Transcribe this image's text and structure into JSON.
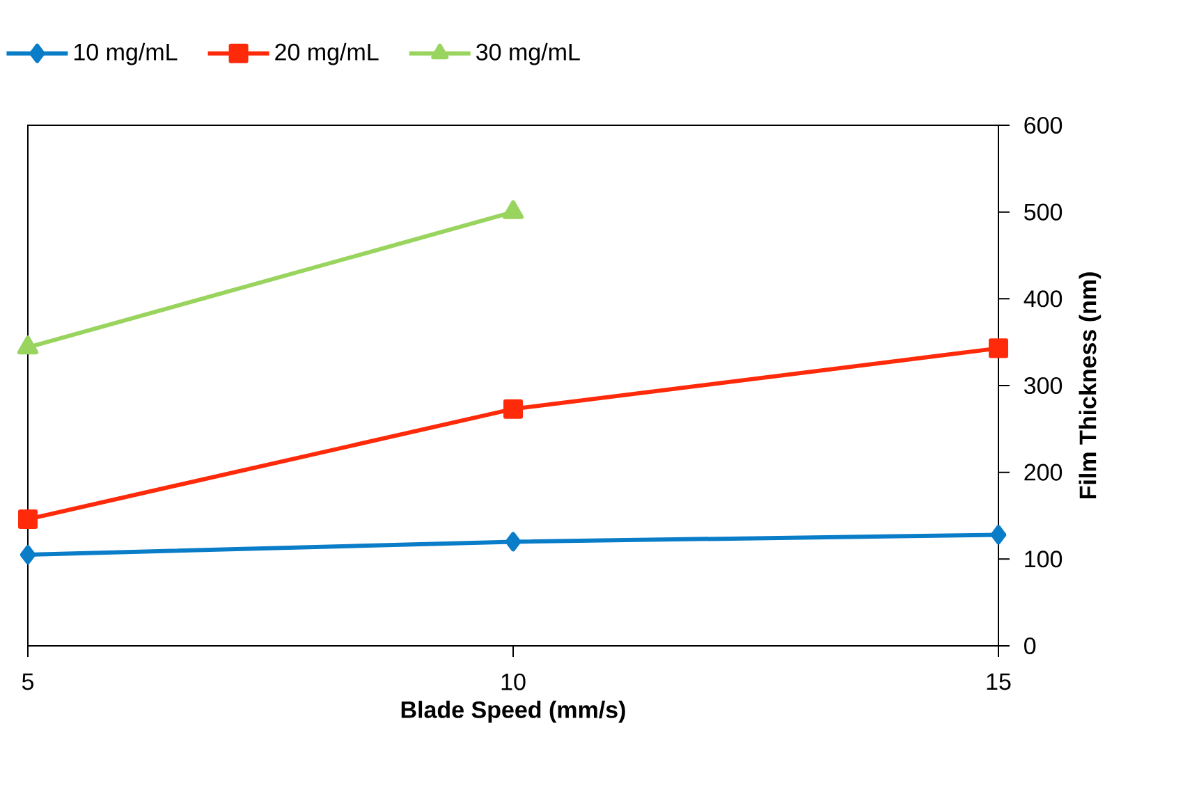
{
  "chart_data": {
    "type": "line",
    "xlabel": "Blade Speed (mm/s)",
    "ylabel": "Film Thickness (nm)",
    "xlim": [
      5,
      15
    ],
    "xticks": [
      5,
      10,
      15
    ],
    "ylim": [
      0,
      600
    ],
    "yticks": [
      0,
      100,
      200,
      300,
      400,
      500,
      600
    ],
    "grid": false,
    "legend": "top left",
    "series": [
      {
        "name": "10 mg/mL",
        "color": "#0a7dc8",
        "marker": "diamond",
        "x": [
          5,
          10,
          15
        ],
        "values": [
          105,
          120,
          128
        ]
      },
      {
        "name": "20 mg/mL",
        "color": "#ff2a0a",
        "marker": "square",
        "x": [
          5,
          10,
          15
        ],
        "values": [
          146,
          273,
          343
        ]
      },
      {
        "name": "30 mg/mL",
        "color": "#99d45e",
        "marker": "triangle",
        "x": [
          5,
          10
        ],
        "values": [
          344,
          500
        ]
      }
    ]
  }
}
